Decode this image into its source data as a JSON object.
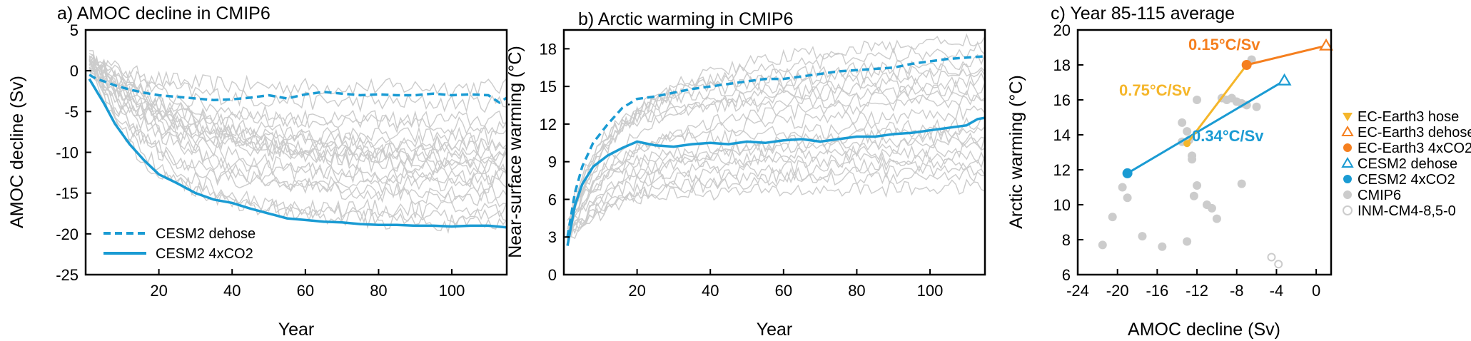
{
  "chart_data": [
    {
      "type": "line",
      "title": "a) AMOC decline in CMIP6",
      "xlabel": "Year",
      "ylabel": "AMOC decline (Sv)",
      "xlim": [
        0,
        115
      ],
      "ylim": [
        -25,
        5
      ],
      "xticks": [
        20,
        40,
        60,
        80,
        100
      ],
      "yticks": [
        5,
        0,
        -5,
        -10,
        -15,
        -20,
        -25
      ],
      "ytick_labels": [
        "5",
        "0",
        "-5",
        "-10",
        "-15",
        "-20",
        "-25"
      ],
      "grid": false,
      "legend_position": "bottom-left",
      "background_series_color": "#cccccc",
      "highlight_color": "#1a9bd3",
      "series": [
        {
          "name": "CESM2 dehose",
          "style": "dashed",
          "x": [
            1,
            3,
            5,
            8,
            12,
            16,
            20,
            25,
            30,
            35,
            40,
            45,
            50,
            55,
            60,
            65,
            70,
            75,
            80,
            85,
            90,
            95,
            100,
            105,
            110,
            113,
            115
          ],
          "y": [
            -0.5,
            -1.0,
            -1.3,
            -1.8,
            -2.3,
            -2.7,
            -3.0,
            -3.2,
            -3.4,
            -3.6,
            -3.5,
            -3.3,
            -3.0,
            -3.4,
            -2.9,
            -2.6,
            -2.8,
            -3.0,
            -2.9,
            -3.0,
            -3.0,
            -2.8,
            -3.0,
            -2.9,
            -3.0,
            -3.9,
            -3.3
          ]
        },
        {
          "name": "CESM2 4xCO2",
          "style": "solid",
          "x": [
            1,
            3,
            5,
            8,
            12,
            16,
            20,
            25,
            30,
            35,
            40,
            45,
            50,
            55,
            60,
            65,
            70,
            75,
            80,
            85,
            90,
            95,
            100,
            105,
            110,
            115
          ],
          "y": [
            -1.0,
            -2.5,
            -4.0,
            -6.5,
            -9.0,
            -11.0,
            -12.7,
            -13.8,
            -15.0,
            -15.8,
            -16.2,
            -16.9,
            -17.5,
            -18.1,
            -18.3,
            -18.5,
            -18.6,
            -18.8,
            -18.9,
            -18.9,
            -19.0,
            -19.0,
            -19.1,
            -19.0,
            -19.0,
            -19.2
          ]
        }
      ]
    },
    {
      "type": "line",
      "title": "b) Arctic warming in CMIP6",
      "xlabel": "Year",
      "ylabel": "Near-surface warming (°C)",
      "xlim": [
        0,
        115
      ],
      "ylim": [
        0,
        19.5
      ],
      "xticks": [
        20,
        40,
        60,
        80,
        100
      ],
      "yticks": [
        0,
        3,
        6,
        9,
        12,
        15,
        18
      ],
      "grid": false,
      "background_series_color": "#cccccc",
      "highlight_color": "#1a9bd3",
      "series": [
        {
          "name": "CESM2 dehose",
          "style": "dashed",
          "x": [
            1,
            3,
            5,
            8,
            12,
            16,
            20,
            25,
            30,
            35,
            40,
            45,
            50,
            55,
            60,
            65,
            70,
            75,
            80,
            85,
            90,
            95,
            100,
            105,
            110,
            115
          ],
          "y": [
            3.0,
            6.5,
            8.6,
            10.5,
            12.0,
            13.3,
            14.0,
            14.2,
            14.5,
            14.8,
            15.0,
            15.2,
            15.4,
            15.6,
            15.6,
            15.8,
            16.0,
            16.2,
            16.3,
            16.4,
            16.5,
            16.8,
            17.0,
            17.2,
            17.3,
            17.4
          ]
        },
        {
          "name": "CESM2 4xCO2",
          "style": "solid",
          "x": [
            1,
            3,
            5,
            8,
            12,
            16,
            20,
            25,
            30,
            35,
            40,
            45,
            50,
            55,
            60,
            65,
            70,
            75,
            80,
            85,
            90,
            95,
            100,
            105,
            110,
            113,
            115
          ],
          "y": [
            2.3,
            5.5,
            7.2,
            8.6,
            9.5,
            10.1,
            10.6,
            10.3,
            10.2,
            10.4,
            10.5,
            10.4,
            10.6,
            10.5,
            10.7,
            10.8,
            10.6,
            10.8,
            11.0,
            11.0,
            11.2,
            11.3,
            11.5,
            11.7,
            11.9,
            12.4,
            12.5
          ]
        }
      ]
    },
    {
      "type": "scatter",
      "title": "c) Year 85-115 average",
      "xlabel": "AMOC decline (Sv)",
      "ylabel": "Arctic warming (°C)",
      "xlim": [
        -24,
        1.5
      ],
      "ylim": [
        6,
        20
      ],
      "xticks": [
        -24,
        -20,
        -16,
        -12,
        -8,
        -4,
        0
      ],
      "xtick_labels": [
        "-24",
        "-20",
        "-16",
        "-12",
        "-8",
        "-4",
        "0"
      ],
      "yticks": [
        6,
        8,
        10,
        12,
        14,
        16,
        18,
        20
      ],
      "grid": false,
      "legend_position": "right",
      "colors": {
        "ec_earth": "#f6a623",
        "ec_earth_4x": "#f57f1f",
        "ec_earth_hose": "#f5b62a",
        "cesm": "#1a9bd3",
        "cmip": "#cccccc"
      },
      "legend": [
        {
          "label": "EC-Earth3 hose",
          "marker": "triangle-down",
          "color": "#f5b62a"
        },
        {
          "label": "EC-Earth3 dehose",
          "marker": "triangle-up-open",
          "color": "#f57f1f"
        },
        {
          "label": "EC-Earth3 4xCO2",
          "marker": "circle",
          "color": "#f57f1f"
        },
        {
          "label": "CESM2 dehose",
          "marker": "triangle-up-open",
          "color": "#1a9bd3"
        },
        {
          "label": "CESM2 4xCO2",
          "marker": "circle",
          "color": "#1a9bd3"
        },
        {
          "label": "CMIP6",
          "marker": "circle",
          "color": "#cccccc"
        },
        {
          "label": "INM-CM4-8,5-0",
          "marker": "circle-open",
          "color": "#cccccc"
        }
      ],
      "cmip6_points": {
        "x": [
          -21.5,
          -20.5,
          -19.5,
          -19.0,
          -17.5,
          -15.5,
          -13.5,
          -13.0,
          -12.8,
          -12.5,
          -12.5,
          -12.3,
          -12.0,
          -11.0,
          -10.5,
          -10.0,
          -9.5,
          -9.0,
          -8.5,
          -8.0,
          -7.5,
          -7.0,
          -6.5,
          -6.0,
          -7.5,
          -13.0,
          -13.5,
          -12.0
        ],
        "y": [
          7.7,
          9.3,
          11.0,
          10.4,
          8.2,
          7.6,
          14.7,
          14.2,
          13.7,
          12.8,
          12.6,
          10.5,
          11.1,
          10.0,
          9.8,
          9.2,
          16.1,
          16.0,
          16.1,
          15.9,
          15.8,
          15.7,
          18.3,
          15.6,
          11.2,
          7.9,
          13.6,
          16.0
        ]
      },
      "inm_points": {
        "x": [
          -4.5,
          -3.8
        ],
        "y": [
          7.0,
          6.6
        ]
      },
      "cesm_line": {
        "x": [
          -19,
          -3.2
        ],
        "y": [
          11.8,
          17.1
        ],
        "label": "0.34°C/Sv"
      },
      "ec_hose_line": {
        "x": [
          -13,
          -7
        ],
        "y": [
          13.5,
          18.0
        ],
        "label": "0.75°C/Sv"
      },
      "ec_dehose_line": {
        "x": [
          -7,
          1
        ],
        "y": [
          18.0,
          19.1
        ],
        "label": "0.15°C/Sv"
      },
      "points": {
        "cesm_4xco2": {
          "x": -19,
          "y": 11.8
        },
        "cesm_dehose": {
          "x": -3.2,
          "y": 17.1
        },
        "ec_hose": {
          "x": -13,
          "y": 13.5
        },
        "ec_4xco2": {
          "x": -7,
          "y": 18.0
        },
        "ec_dehose": {
          "x": 1,
          "y": 19.1
        }
      }
    }
  ]
}
